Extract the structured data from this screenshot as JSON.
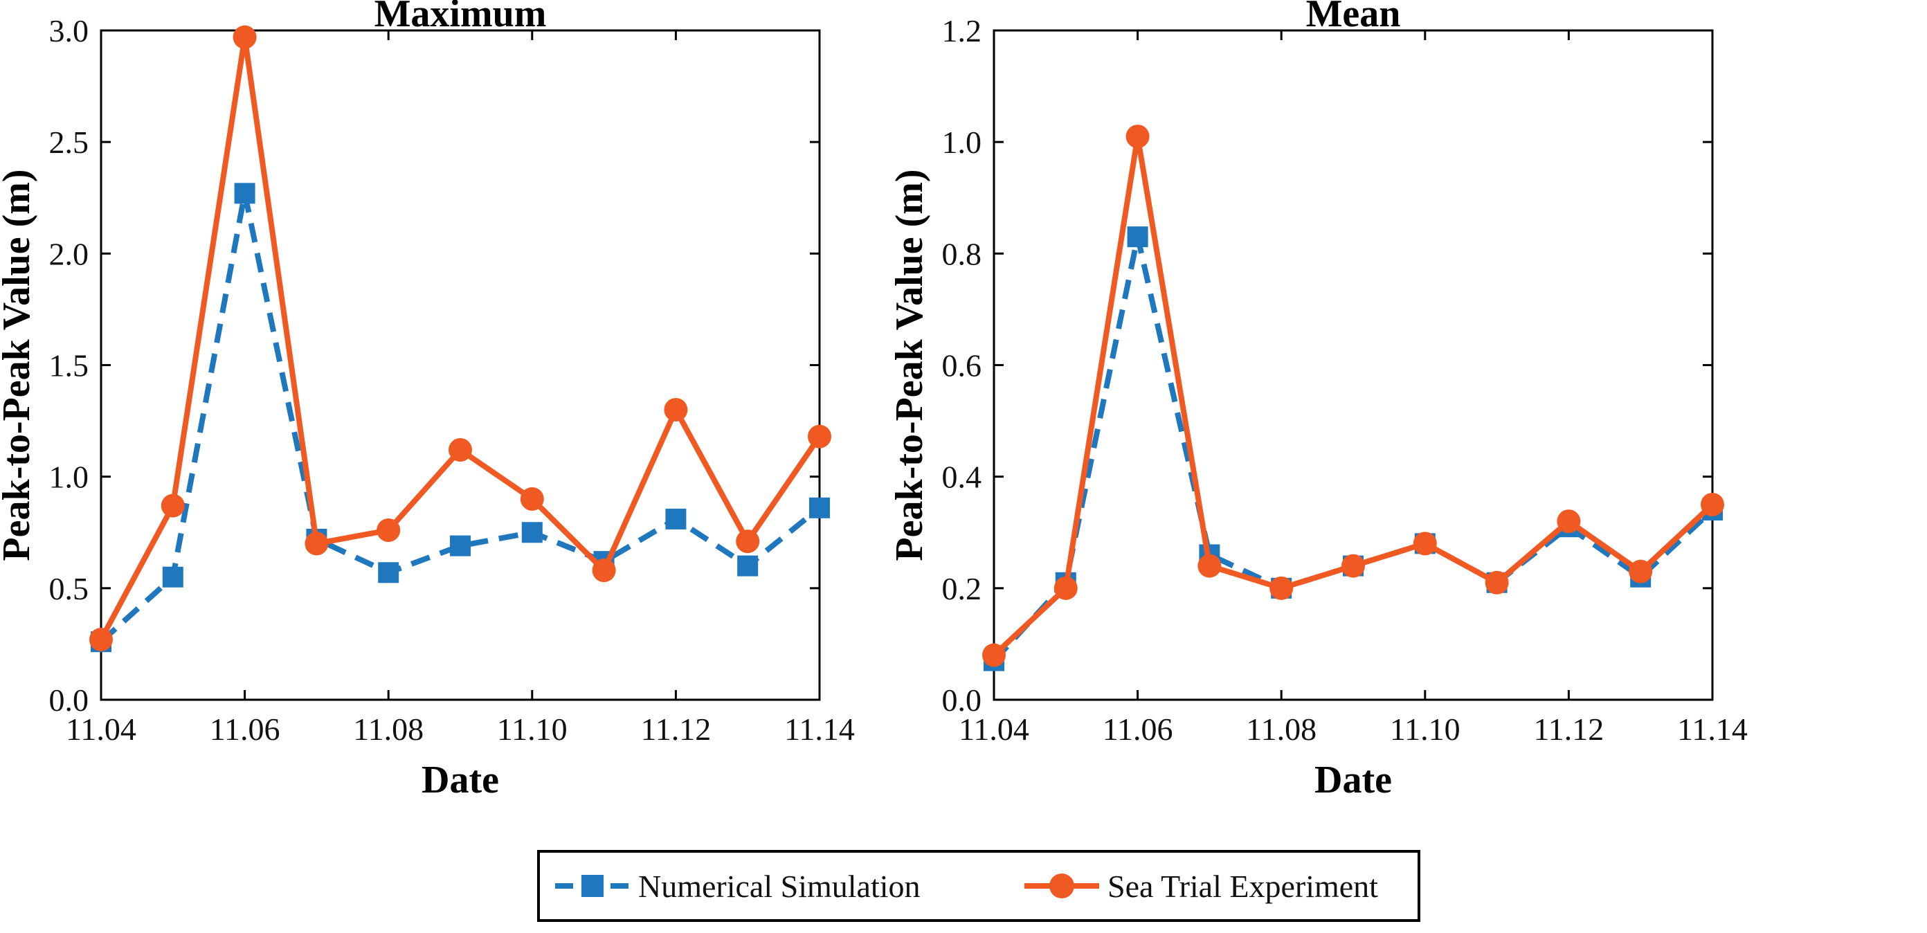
{
  "colors": {
    "numerical": "#1f77bd",
    "sea_trial": "#f05a22",
    "axes": "#000000"
  },
  "legend": {
    "numerical_label": "Numerical Simulation",
    "sea_trial_label": "Sea Trial Experiment",
    "placement": "bottom-center"
  },
  "chart_data": [
    {
      "type": "line",
      "title": "Maximum",
      "xlabel": "Date",
      "ylabel": "Peak-to-Peak Value (m)",
      "x": [
        "11.04",
        "11.05",
        "11.06",
        "11.07",
        "11.08",
        "11.09",
        "11.10",
        "11.11",
        "11.12",
        "11.13",
        "11.14"
      ],
      "xticks": [
        "11.04",
        "11.06",
        "11.08",
        "11.10",
        "11.12",
        "11.14"
      ],
      "yticks": [
        "0.0",
        "0.5",
        "1.0",
        "1.5",
        "2.0",
        "2.5",
        "3.0"
      ],
      "ylim": [
        0,
        3.0
      ],
      "series": [
        {
          "name": "Numerical Simulation",
          "style": "dashed-square",
          "values": [
            0.26,
            0.55,
            2.27,
            0.72,
            0.57,
            0.69,
            0.75,
            0.62,
            0.81,
            0.6,
            0.86
          ]
        },
        {
          "name": "Sea Trial Experiment",
          "style": "solid-circle",
          "values": [
            0.27,
            0.87,
            2.97,
            0.7,
            0.76,
            1.12,
            0.9,
            0.58,
            1.3,
            0.71,
            1.18
          ]
        }
      ]
    },
    {
      "type": "line",
      "title": "Mean",
      "xlabel": "Date",
      "ylabel": "Peak-to-Peak Value (m)",
      "x": [
        "11.04",
        "11.05",
        "11.06",
        "11.07",
        "11.08",
        "11.09",
        "11.10",
        "11.11",
        "11.12",
        "11.13",
        "11.14"
      ],
      "xticks": [
        "11.04",
        "11.06",
        "11.08",
        "11.10",
        "11.12",
        "11.14"
      ],
      "yticks": [
        "0.0",
        "0.2",
        "0.4",
        "0.6",
        "0.8",
        "1.0",
        "1.2"
      ],
      "ylim": [
        0,
        1.2
      ],
      "series": [
        {
          "name": "Numerical Simulation",
          "style": "dashed-square",
          "values": [
            0.07,
            0.21,
            0.83,
            0.26,
            0.2,
            0.24,
            0.28,
            0.21,
            0.31,
            0.22,
            0.34
          ]
        },
        {
          "name": "Sea Trial Experiment",
          "style": "solid-circle",
          "values": [
            0.08,
            0.2,
            1.01,
            0.24,
            0.2,
            0.24,
            0.28,
            0.21,
            0.32,
            0.23,
            0.35
          ]
        }
      ]
    }
  ]
}
